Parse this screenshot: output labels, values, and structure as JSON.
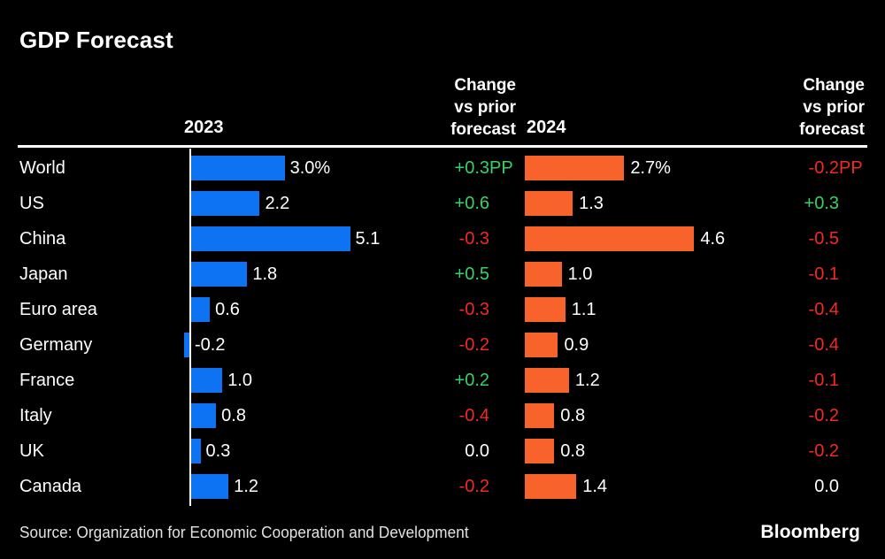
{
  "title": "GDP Forecast",
  "header": {
    "col_2023": "2023",
    "col_change_1": "Change\nvs prior\nforecast",
    "col_2024": "2024",
    "col_change_2": "Change\nvs prior\nforecast"
  },
  "colors": {
    "background": "#000000",
    "bar_2023": "#0d73f2",
    "bar_2024": "#f8622b",
    "positive": "#36d266",
    "negative": "#f42a20",
    "neutral": "#ffffff",
    "text": "#ffffff",
    "axis": "#ffffff"
  },
  "chart_data": {
    "type": "bar",
    "orientation": "horizontal",
    "title": "GDP Forecast",
    "grid": false,
    "legend_position": "none",
    "categories": [
      "World",
      "US",
      "China",
      "Japan",
      "Euro area",
      "Germany",
      "France",
      "Italy",
      "UK",
      "Canada"
    ],
    "series": [
      {
        "name": "2023",
        "values": [
          3.0,
          2.2,
          5.1,
          1.8,
          0.6,
          -0.2,
          1.0,
          0.8,
          0.3,
          1.2
        ],
        "labels": [
          "3.0%",
          "2.2",
          "5.1",
          "1.8",
          "0.6",
          "-0.2",
          "1.0",
          "0.8",
          "0.3",
          "1.2"
        ],
        "color": "#0d73f2"
      },
      {
        "name": "2024",
        "values": [
          2.7,
          1.3,
          4.6,
          1.0,
          1.1,
          0.9,
          1.2,
          0.8,
          0.8,
          1.4
        ],
        "labels": [
          "2.7%",
          "1.3",
          "4.6",
          "1.0",
          "1.1",
          "0.9",
          "1.2",
          "0.8",
          "0.8",
          "1.4"
        ],
        "color": "#f8622b"
      }
    ],
    "changes": [
      {
        "name": "Change vs prior forecast (2023)",
        "values": [
          0.3,
          0.6,
          -0.3,
          0.5,
          -0.3,
          -0.2,
          0.2,
          -0.4,
          0.0,
          -0.2
        ],
        "labels": [
          "+0.3PP",
          "+0.6",
          "-0.3",
          "+0.5",
          "-0.3",
          "-0.2",
          "+0.2",
          "-0.4",
          "0.0",
          "-0.2"
        ]
      },
      {
        "name": "Change vs prior forecast (2024)",
        "values": [
          -0.2,
          0.3,
          -0.5,
          -0.1,
          -0.4,
          -0.4,
          -0.1,
          -0.2,
          -0.2,
          0.0
        ],
        "labels": [
          "-0.2PP",
          "+0.3",
          "-0.5",
          "-0.1",
          "-0.4",
          "-0.4",
          "-0.1",
          "-0.2",
          "-0.2",
          "0.0"
        ]
      }
    ],
    "xlabel": "",
    "ylabel": "",
    "value_unit": "percent"
  },
  "source": "Source: Organization for Economic Cooperation and Development",
  "brand": "Bloomberg"
}
